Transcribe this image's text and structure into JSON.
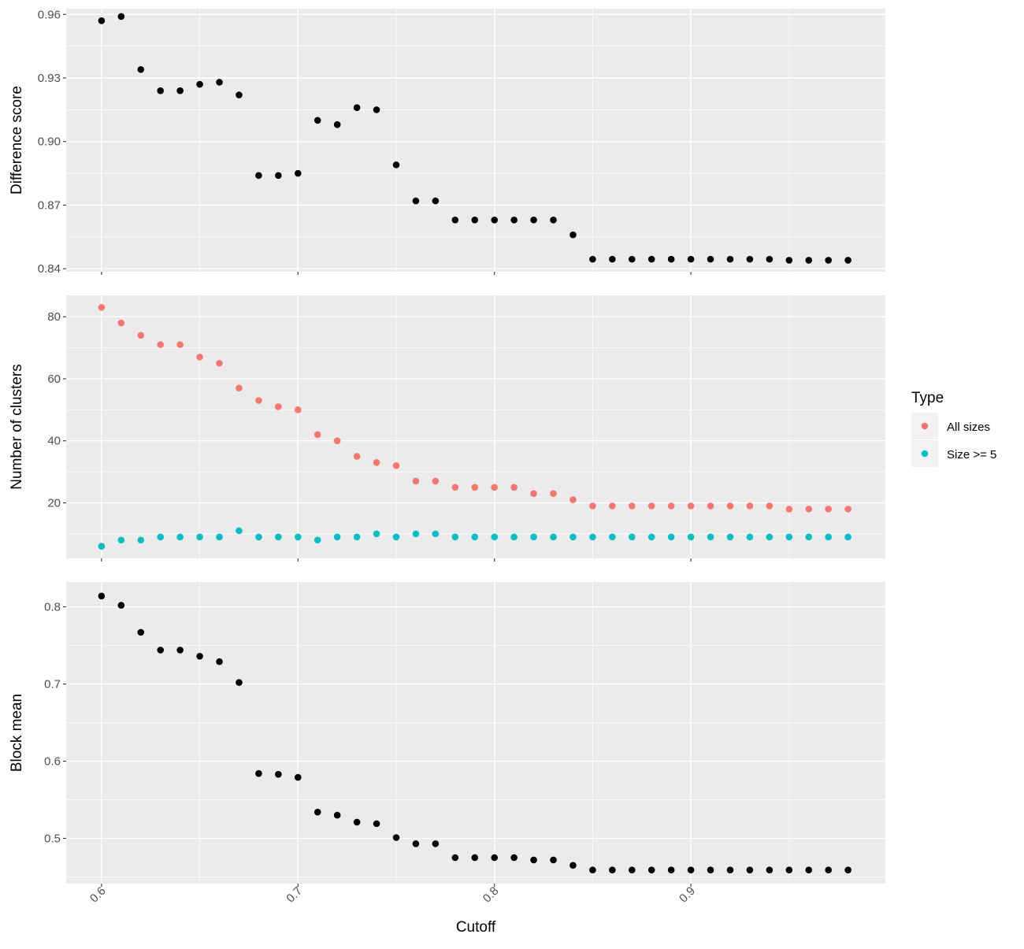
{
  "chart_data": {
    "type": "scatter",
    "xlabel": "Cutoff",
    "xlim": [
      0.582,
      0.999
    ],
    "xticks": [
      0.6,
      0.7,
      0.8,
      0.9
    ],
    "xtick_labels": [
      "0.6",
      "0.7",
      "0.8",
      "0.9"
    ],
    "x": [
      0.6,
      0.61,
      0.62,
      0.63,
      0.64,
      0.65,
      0.66,
      0.67,
      0.68,
      0.69,
      0.7,
      0.71,
      0.72,
      0.73,
      0.74,
      0.75,
      0.76,
      0.77,
      0.78,
      0.79,
      0.8,
      0.81,
      0.82,
      0.83,
      0.84,
      0.85,
      0.86,
      0.87,
      0.88,
      0.89,
      0.9,
      0.91,
      0.92,
      0.93,
      0.94,
      0.95,
      0.96,
      0.97,
      0.98
    ],
    "grid": true,
    "legend": {
      "title": "Type",
      "placement": "right",
      "entries": [
        {
          "label": "All sizes",
          "color": "#F8766D"
        },
        {
          "label": "Size >= 5",
          "color": "#00BFC4"
        }
      ]
    },
    "panels": [
      {
        "ylabel": "Difference score",
        "ylim": [
          0.8386,
          0.9627
        ],
        "yticks": [
          0.84,
          0.87,
          0.9,
          0.93,
          0.96
        ],
        "ytick_labels": [
          "0.84",
          "0.87",
          "0.90",
          "0.93",
          "0.96"
        ],
        "series": [
          {
            "color": "#000000",
            "values": [
              0.957,
              0.959,
              0.934,
              0.924,
              0.924,
              0.927,
              0.928,
              0.922,
              0.884,
              0.884,
              0.885,
              0.91,
              0.908,
              0.916,
              0.915,
              0.889,
              0.872,
              0.872,
              0.863,
              0.863,
              0.863,
              0.863,
              0.863,
              0.863,
              0.856,
              0.8445,
              0.8445,
              0.8445,
              0.8445,
              0.8445,
              0.8445,
              0.8445,
              0.8445,
              0.8445,
              0.8445,
              0.844,
              0.844,
              0.844,
              0.844
            ]
          }
        ]
      },
      {
        "ylabel": "Number of clusters",
        "ylim": [
          2.1,
          86.9
        ],
        "yticks": [
          20,
          40,
          60,
          80
        ],
        "ytick_labels": [
          "20",
          "40",
          "60",
          "80"
        ],
        "series": [
          {
            "name": "All sizes",
            "color": "#F8766D",
            "values": [
              83,
              78,
              74,
              71,
              71,
              67,
              65,
              57,
              53,
              51,
              50,
              42,
              40,
              35,
              33,
              32,
              27,
              27,
              25,
              25,
              25,
              25,
              23,
              23,
              21,
              19,
              19,
              19,
              19,
              19,
              19,
              19,
              19,
              19,
              19,
              18,
              18,
              18,
              18
            ]
          },
          {
            "name": "Size >= 5",
            "color": "#00BFC4",
            "values": [
              6,
              8,
              8,
              9,
              9,
              9,
              9,
              11,
              9,
              9,
              9,
              8,
              9,
              9,
              10,
              9,
              10,
              10,
              9,
              9,
              9,
              9,
              9,
              9,
              9,
              9,
              9,
              9,
              9,
              9,
              9,
              9,
              9,
              9,
              9,
              9,
              9,
              9,
              9
            ]
          }
        ]
      },
      {
        "ylabel": "Block mean",
        "ylim": [
          0.4413,
          0.8322
        ],
        "yticks": [
          0.5,
          0.6,
          0.7,
          0.8
        ],
        "ytick_labels": [
          "0.5",
          "0.6",
          "0.7",
          "0.8"
        ],
        "series": [
          {
            "color": "#000000",
            "values": [
              0.814,
              0.802,
              0.767,
              0.744,
              0.744,
              0.736,
              0.729,
              0.702,
              0.584,
              0.583,
              0.579,
              0.534,
              0.53,
              0.521,
              0.519,
              0.501,
              0.493,
              0.493,
              0.475,
              0.475,
              0.475,
              0.475,
              0.472,
              0.472,
              0.465,
              0.459,
              0.459,
              0.459,
              0.459,
              0.459,
              0.459,
              0.459,
              0.459,
              0.459,
              0.459,
              0.459,
              0.459,
              0.459,
              0.459
            ]
          }
        ]
      }
    ]
  }
}
